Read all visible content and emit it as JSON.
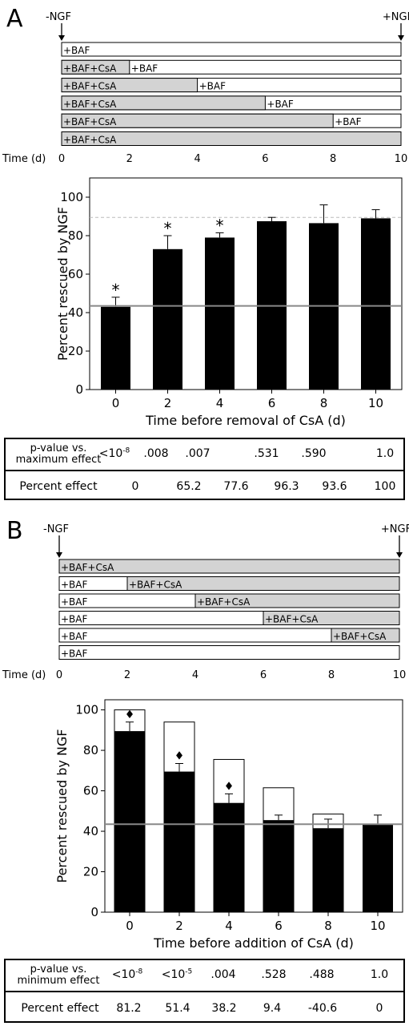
{
  "panelA": {
    "letter": "A",
    "schematic": {
      "left_label": "-NGF",
      "right_label": "+NGF",
      "axis_label": "Time (d)",
      "ticks": [
        "0",
        "2",
        "4",
        "6",
        "8",
        "10"
      ],
      "rows": [
        {
          "treat_end": 0,
          "first": "",
          "second": "+BAF"
        },
        {
          "treat_end": 2,
          "first": "+BAF+CsA",
          "second": "+BAF"
        },
        {
          "treat_end": 4,
          "first": "+BAF+CsA",
          "second": "+BAF"
        },
        {
          "treat_end": 6,
          "first": "+BAF+CsA",
          "second": "+BAF"
        },
        {
          "treat_end": 8,
          "first": "+BAF+CsA",
          "second": "+BAF"
        },
        {
          "treat_end": 10,
          "first": "+BAF+CsA",
          "second": ""
        }
      ]
    },
    "table": {
      "row1_head_line1": "p-value vs.",
      "row1_head_line2": "maximum effect",
      "pvalue_first_base": "<10",
      "pvalue_first_exp": "-8",
      "pvalues": [
        "",
        ".008",
        ".007",
        ".531",
        ".590",
        "1.0"
      ],
      "row2_head": "Percent effect",
      "effects": [
        "0",
        "65.2",
        "77.6",
        "96.3",
        "93.6",
        "100"
      ]
    }
  },
  "panelB": {
    "letter": "B",
    "schematic": {
      "left_label": "-NGF",
      "right_label": "+NGF",
      "axis_label": "Time (d)",
      "ticks": [
        "0",
        "2",
        "4",
        "6",
        "8",
        "10"
      ],
      "rows": [
        {
          "treat_start": 0,
          "first": "",
          "second": "+BAF+CsA"
        },
        {
          "treat_start": 2,
          "first": "+BAF",
          "second": "+BAF+CsA"
        },
        {
          "treat_start": 4,
          "first": "+BAF",
          "second": "+BAF+CsA"
        },
        {
          "treat_start": 6,
          "first": "+BAF",
          "second": "+BAF+CsA"
        },
        {
          "treat_start": 8,
          "first": "+BAF",
          "second": "+BAF+CsA"
        },
        {
          "treat_start": 10,
          "first": "+BAF",
          "second": ""
        }
      ]
    },
    "table": {
      "row1_head_line1": "p-value vs.",
      "row1_head_line2": "minimum effect",
      "pvalue_first_base": "<10",
      "pvalue_first_exp": "-8",
      "pvalue_second_base": "<10",
      "pvalue_second_exp": "-5",
      "pvalues": [
        "",
        "",
        ".004",
        ".528",
        ".488",
        "1.0"
      ],
      "row2_head": "Percent effect",
      "effects": [
        "81.2",
        "51.4",
        "38.2",
        "9.4",
        "-40.6",
        "0"
      ]
    }
  },
  "chart_data": [
    {
      "type": "bar",
      "panel": "A",
      "categories": [
        "0",
        "2",
        "4",
        "6",
        "8",
        "10"
      ],
      "values": [
        43,
        73,
        79,
        87.5,
        86.5,
        89
      ],
      "errors": [
        5,
        7,
        2.5,
        2,
        9.5,
        4.5
      ],
      "significance_markers": [
        "*",
        "*",
        "*",
        "",
        "",
        ""
      ],
      "xlabel": "Time before removal of CsA (d)",
      "ylabel": "Percent rescued by NGF",
      "yticks": [
        "0",
        "20",
        "40",
        "60",
        "80",
        "100"
      ],
      "ylim": [
        0,
        110
      ],
      "reference_line": 43.5,
      "dashed_reference_line": 89.5,
      "bar_color": "#000000",
      "grid": false
    },
    {
      "type": "bar",
      "panel": "B",
      "categories": [
        "0",
        "2",
        "4",
        "6",
        "8",
        "10"
      ],
      "values": [
        89.5,
        69.5,
        54,
        45.5,
        41.5,
        43.5
      ],
      "errors": [
        4.5,
        4,
        4.5,
        2.5,
        4.5,
        4.5
      ],
      "open_bar_values": [
        100,
        94,
        75.5,
        61.5,
        48.5,
        0
      ],
      "significance_markers": [
        "♦",
        "♦",
        "♦",
        "",
        "",
        ""
      ],
      "xlabel": "Time before addition of CsA (d)",
      "ylabel": "Percent rescued by NGF",
      "yticks": [
        "0",
        "20",
        "40",
        "60",
        "80",
        "100"
      ],
      "ylim": [
        0,
        105
      ],
      "reference_line": 43.5,
      "bar_color": "#000000",
      "grid": false
    }
  ]
}
